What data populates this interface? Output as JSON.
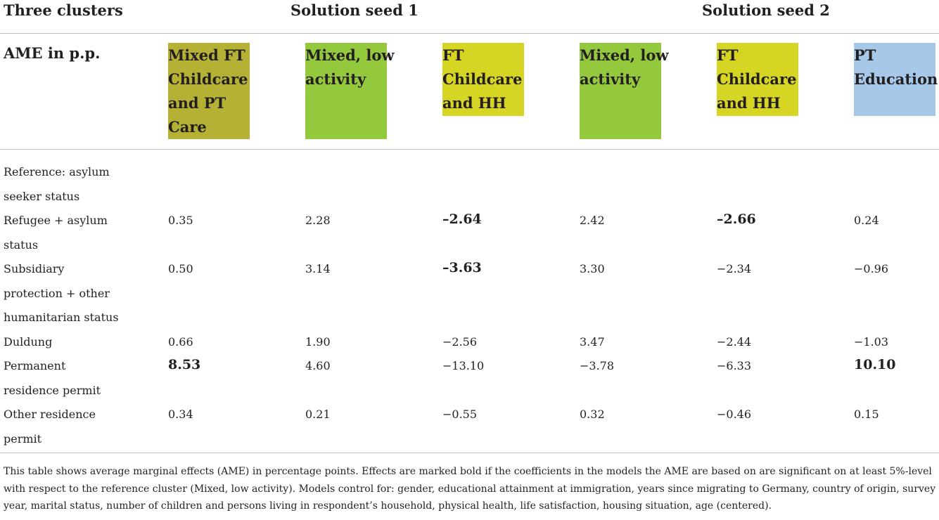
{
  "header": {
    "corner": "Three clusters",
    "seed1": "Solution seed 1",
    "seed2": "Solution seed 2",
    "ame_label": "AME in p.p."
  },
  "clusters": [
    {
      "lines": [
        "Mixed FT",
        "Childcare",
        "and PT",
        "Care"
      ],
      "color": "#b5b135"
    },
    {
      "lines": [
        "Mixed, low",
        "activity"
      ],
      "color": "#95c93d"
    },
    {
      "lines": [
        "FT",
        "Childcare",
        "and HH"
      ],
      "color": "#d6d523"
    },
    {
      "lines": [
        "Mixed, low",
        "activity"
      ],
      "color": "#95c93d"
    },
    {
      "lines": [
        "FT",
        "Childcare",
        "and HH"
      ],
      "color": "#d6d523"
    },
    {
      "lines": [
        "PT",
        "Education"
      ],
      "color": "#a7c8e9"
    }
  ],
  "rows": [
    {
      "label": [
        "Reference: asylum",
        "seeker status"
      ],
      "values": []
    },
    {
      "label": [
        "Refugee + asylum",
        "status"
      ],
      "values": [
        "0.35",
        "2.28",
        "–2.64",
        "2.42",
        "–2.66",
        "0.24"
      ],
      "bold": [
        false,
        false,
        true,
        false,
        true,
        false
      ]
    },
    {
      "label": [
        "Subsidiary",
        "protection + other",
        "humanitarian status"
      ],
      "values": [
        "0.50",
        "3.14",
        "–3.63",
        "3.30",
        "−2.34",
        "−0.96"
      ],
      "bold": [
        false,
        false,
        true,
        false,
        false,
        false
      ]
    },
    {
      "label": [
        "Duldung"
      ],
      "values": [
        "0.66",
        "1.90",
        "−2.56",
        "3.47",
        "−2.44",
        "−1.03"
      ],
      "bold": [
        false,
        false,
        false,
        false,
        false,
        false
      ]
    },
    {
      "label": [
        "Permanent",
        "residence permit"
      ],
      "values": [
        "8.53",
        "4.60",
        "−13.10",
        "−3.78",
        "−6.33",
        "10.10"
      ],
      "bold": [
        true,
        false,
        false,
        false,
        false,
        true
      ]
    },
    {
      "label": [
        "Other residence",
        "permit"
      ],
      "values": [
        "0.34",
        "0.21",
        "−0.55",
        "0.32",
        "−0.46",
        "0.15"
      ],
      "bold": [
        false,
        false,
        false,
        false,
        false,
        false
      ]
    }
  ],
  "footnote": [
    "This table shows average marginal effects (AME) in percentage points. Effects are marked bold if the coefficients in the models the AME are based on are significant on at least 5%-level",
    "with respect to the reference cluster (Mixed, low activity). Models control for: gender, educational attainment at immigration, years since migrating to Germany, country of origin, survey",
    "year, marital status, number of children and persons living in respondent’s household, physical health, life satisfaction, housing situation, age (centered)."
  ]
}
